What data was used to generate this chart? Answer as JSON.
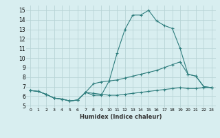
{
  "line1_x": [
    0,
    1,
    2,
    3,
    4,
    5,
    6,
    7,
    8,
    9,
    10,
    11,
    12,
    13,
    14,
    15,
    16,
    17,
    18,
    19,
    20,
    21,
    22,
    23
  ],
  "line1_y": [
    6.6,
    6.5,
    6.2,
    5.8,
    5.7,
    5.5,
    5.6,
    6.4,
    6.1,
    6.1,
    7.6,
    10.5,
    13.0,
    14.5,
    14.5,
    15.0,
    13.9,
    13.4,
    13.1,
    11.0,
    8.3,
    8.1,
    7.0,
    6.9
  ],
  "line2_x": [
    0,
    1,
    2,
    3,
    4,
    5,
    6,
    7,
    8,
    9,
    10,
    11,
    12,
    13,
    14,
    15,
    16,
    17,
    18,
    19,
    20,
    21,
    22,
    23
  ],
  "line2_y": [
    6.6,
    6.5,
    6.2,
    5.8,
    5.7,
    5.5,
    5.6,
    6.4,
    7.3,
    7.5,
    7.6,
    7.7,
    7.9,
    8.1,
    8.3,
    8.5,
    8.7,
    9.0,
    9.3,
    9.6,
    8.3,
    8.1,
    7.0,
    6.9
  ],
  "line3_x": [
    0,
    1,
    2,
    3,
    4,
    5,
    6,
    7,
    8,
    9,
    10,
    11,
    12,
    13,
    14,
    15,
    16,
    17,
    18,
    19,
    20,
    21,
    22,
    23
  ],
  "line3_y": [
    6.6,
    6.5,
    6.2,
    5.8,
    5.7,
    5.5,
    5.6,
    6.4,
    6.3,
    6.2,
    6.1,
    6.1,
    6.2,
    6.3,
    6.4,
    6.5,
    6.6,
    6.7,
    6.8,
    6.9,
    6.8,
    6.8,
    6.9,
    6.9
  ],
  "line_color": "#2e7d7d",
  "bg_color": "#d8eef0",
  "grid_color": "#b8d4d6",
  "xlabel": "Humidex (Indice chaleur)",
  "xtick_labels": [
    "0",
    "1",
    "2",
    "3",
    "4",
    "5",
    "6",
    "7",
    "8",
    "9",
    "10",
    "11",
    "12",
    "13",
    "14",
    "15",
    "16",
    "17",
    "18",
    "19",
    "20",
    "21",
    "22",
    "23"
  ],
  "ytick_labels": [
    "5",
    "6",
    "7",
    "8",
    "9",
    "10",
    "11",
    "12",
    "13",
    "14",
    "15"
  ],
  "ytick_vals": [
    5,
    6,
    7,
    8,
    9,
    10,
    11,
    12,
    13,
    14,
    15
  ],
  "xlim": [
    -0.5,
    23.5
  ],
  "ylim": [
    4.8,
    15.5
  ],
  "marker": "+",
  "markersize": 3,
  "linewidth": 0.8
}
